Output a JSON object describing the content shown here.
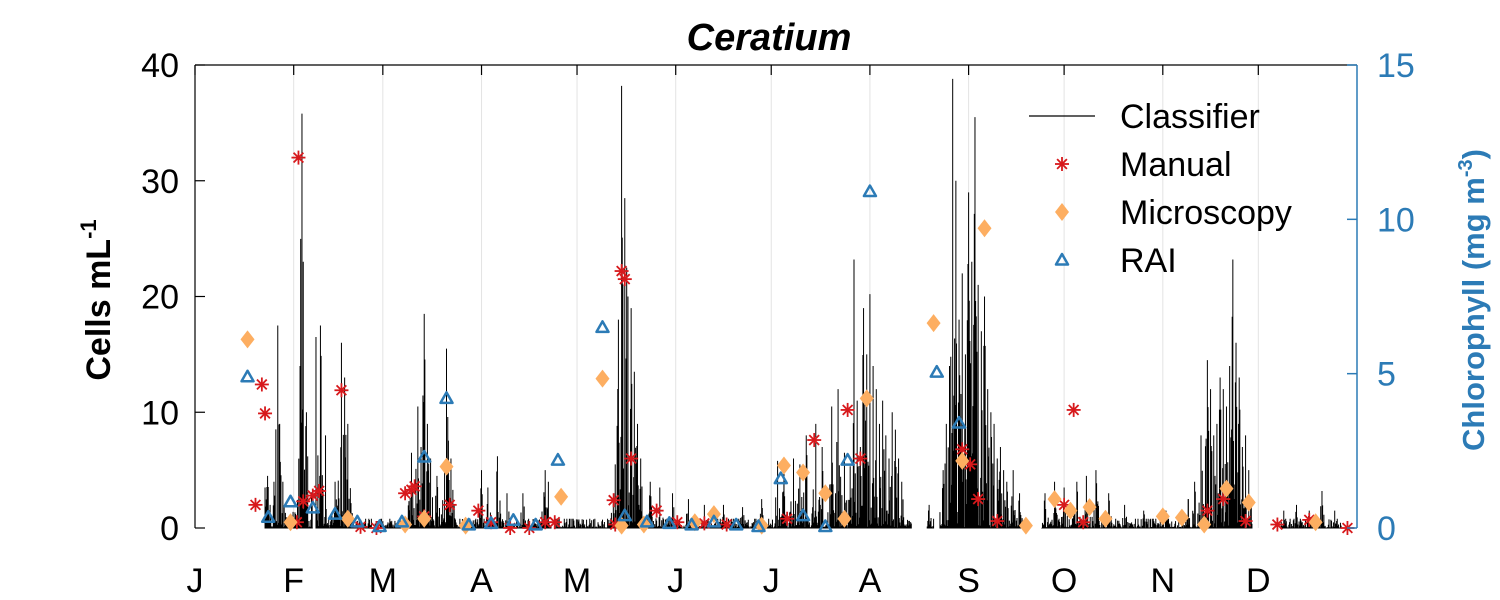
{
  "chart_data": {
    "type": "line",
    "title": "Ceratium",
    "ylabel_left": "Cells mL",
    "ylabel_left_sup": "-1",
    "ylabel_right_prefix": "Chlorophyll (mg m",
    "ylabel_right_sup": "-3",
    "ylabel_right_suffix": ")",
    "xlim": [
      0,
      365
    ],
    "ylim_left": [
      0,
      40
    ],
    "ylim_right": [
      0,
      15
    ],
    "yticks_left": [
      0,
      10,
      20,
      30,
      40
    ],
    "yticks_right": [
      0,
      5,
      10,
      15
    ],
    "xticks": [
      {
        "day": 0,
        "label": "J"
      },
      {
        "day": 31,
        "label": "F"
      },
      {
        "day": 59,
        "label": "M"
      },
      {
        "day": 90,
        "label": "A"
      },
      {
        "day": 120,
        "label": "M"
      },
      {
        "day": 151,
        "label": "J"
      },
      {
        "day": 181,
        "label": "J"
      },
      {
        "day": 212,
        "label": "A"
      },
      {
        "day": 243,
        "label": "S"
      },
      {
        "day": 273,
        "label": "O"
      },
      {
        "day": 304,
        "label": "N"
      },
      {
        "day": 334,
        "label": "D"
      }
    ],
    "grid": "vertical",
    "legend_position": "top-right",
    "legend": [
      {
        "label": "Classifier",
        "marker": "line",
        "color": "#000000"
      },
      {
        "label": "Manual",
        "marker": "asterisk",
        "color": "#d7191c"
      },
      {
        "label": "Microscopy",
        "marker": "diamond",
        "color": "#fdae61"
      },
      {
        "label": "RAI",
        "marker": "triangle",
        "color": "#2c7bb6"
      }
    ],
    "classifier_segments": [
      [
        22,
        37
      ],
      [
        38,
        112
      ],
      [
        113,
        185
      ],
      [
        185,
        225
      ],
      [
        230,
        232
      ],
      [
        234,
        260
      ],
      [
        266,
        312
      ],
      [
        312,
        332
      ],
      [
        341,
        360
      ]
    ],
    "classifier_peaks": [
      {
        "day": 22.0,
        "value": 3.5
      },
      {
        "day": 22.8,
        "value": 4.5
      },
      {
        "day": 23.5,
        "value": 2.0
      },
      {
        "day": 25.0,
        "value": 2.8
      },
      {
        "day": 26.0,
        "value": 17.5
      },
      {
        "day": 26.5,
        "value": 9.0
      },
      {
        "day": 27.5,
        "value": 4.0
      },
      {
        "day": 33.0,
        "value": 14.0
      },
      {
        "day": 33.5,
        "value": 35.8
      },
      {
        "day": 34.0,
        "value": 23.0
      },
      {
        "day": 35.0,
        "value": 10.0
      },
      {
        "day": 38.0,
        "value": 16.5
      },
      {
        "day": 39.5,
        "value": 17.5
      },
      {
        "day": 41.0,
        "value": 8.0
      },
      {
        "day": 44.0,
        "value": 4.0
      },
      {
        "day": 46.0,
        "value": 16.0
      },
      {
        "day": 47.0,
        "value": 13.0
      },
      {
        "day": 48.0,
        "value": 9.0
      },
      {
        "day": 68.0,
        "value": 6.5
      },
      {
        "day": 70.0,
        "value": 10.5
      },
      {
        "day": 71.0,
        "value": 7.0
      },
      {
        "day": 72.0,
        "value": 18.5
      },
      {
        "day": 73.0,
        "value": 9.0
      },
      {
        "day": 74.0,
        "value": 6.0
      },
      {
        "day": 76.0,
        "value": 4.5
      },
      {
        "day": 79.0,
        "value": 15.5
      },
      {
        "day": 80.5,
        "value": 6.0
      },
      {
        "day": 90.0,
        "value": 5.0
      },
      {
        "day": 92.0,
        "value": 3.5
      },
      {
        "day": 95.0,
        "value": 6.2
      },
      {
        "day": 98.0,
        "value": 3.0
      },
      {
        "day": 103.0,
        "value": 3.0
      },
      {
        "day": 110.0,
        "value": 5.0
      },
      {
        "day": 111.0,
        "value": 4.0
      },
      {
        "day": 132.0,
        "value": 5.5
      },
      {
        "day": 133.0,
        "value": 18.0
      },
      {
        "day": 134.0,
        "value": 38.2
      },
      {
        "day": 135.0,
        "value": 28.5
      },
      {
        "day": 135.5,
        "value": 22.5
      },
      {
        "day": 136.0,
        "value": 20.0
      },
      {
        "day": 137.0,
        "value": 19.0
      },
      {
        "day": 138.0,
        "value": 13.5
      },
      {
        "day": 139.0,
        "value": 9.0
      },
      {
        "day": 140.0,
        "value": 6.0
      },
      {
        "day": 143.0,
        "value": 4.0
      },
      {
        "day": 146.0,
        "value": 3.5
      },
      {
        "day": 150.0,
        "value": 3.0
      },
      {
        "day": 155.0,
        "value": 2.5
      },
      {
        "day": 160.0,
        "value": 2.0
      },
      {
        "day": 166.0,
        "value": 2.0
      },
      {
        "day": 172.0,
        "value": 1.8
      },
      {
        "day": 178.0,
        "value": 2.5
      },
      {
        "day": 183.0,
        "value": 5.8
      },
      {
        "day": 185.0,
        "value": 5.0
      },
      {
        "day": 188.0,
        "value": 6.0
      },
      {
        "day": 190.0,
        "value": 5.5
      },
      {
        "day": 192.0,
        "value": 8.0
      },
      {
        "day": 195.0,
        "value": 9.0
      },
      {
        "day": 197.0,
        "value": 7.0
      },
      {
        "day": 200.0,
        "value": 10.5
      },
      {
        "day": 202.0,
        "value": 12.0
      },
      {
        "day": 204.0,
        "value": 6.5
      },
      {
        "day": 207.0,
        "value": 23.2
      },
      {
        "day": 208.0,
        "value": 11.0
      },
      {
        "day": 209.0,
        "value": 7.0
      },
      {
        "day": 210.0,
        "value": 19.0
      },
      {
        "day": 211.0,
        "value": 15.0
      },
      {
        "day": 212.0,
        "value": 20.2
      },
      {
        "day": 213.0,
        "value": 14.0
      },
      {
        "day": 214.0,
        "value": 12.0
      },
      {
        "day": 215.0,
        "value": 9.0
      },
      {
        "day": 216.0,
        "value": 11.0
      },
      {
        "day": 217.0,
        "value": 8.0
      },
      {
        "day": 218.0,
        "value": 6.0
      },
      {
        "day": 219.0,
        "value": 10.0
      },
      {
        "day": 220.0,
        "value": 8.5
      },
      {
        "day": 221.0,
        "value": 6.0
      },
      {
        "day": 222.0,
        "value": 4.0
      },
      {
        "day": 230.5,
        "value": 2.0
      },
      {
        "day": 235.0,
        "value": 5.0
      },
      {
        "day": 236.0,
        "value": 9.0
      },
      {
        "day": 237.0,
        "value": 14.0
      },
      {
        "day": 238.0,
        "value": 38.8
      },
      {
        "day": 239.0,
        "value": 30.0
      },
      {
        "day": 240.0,
        "value": 18.0
      },
      {
        "day": 241.0,
        "value": 22.0
      },
      {
        "day": 242.0,
        "value": 15.0
      },
      {
        "day": 243.0,
        "value": 29.0
      },
      {
        "day": 244.0,
        "value": 23.0
      },
      {
        "day": 245.0,
        "value": 35.5
      },
      {
        "day": 246.0,
        "value": 21.0
      },
      {
        "day": 247.0,
        "value": 17.0
      },
      {
        "day": 248.0,
        "value": 20.0
      },
      {
        "day": 249.0,
        "value": 12.0
      },
      {
        "day": 250.0,
        "value": 10.0
      },
      {
        "day": 251.0,
        "value": 9.0
      },
      {
        "day": 252.0,
        "value": 6.0
      },
      {
        "day": 253.0,
        "value": 7.0
      },
      {
        "day": 254.0,
        "value": 5.0
      },
      {
        "day": 255.0,
        "value": 4.0
      },
      {
        "day": 257.0,
        "value": 5.0
      },
      {
        "day": 259.0,
        "value": 3.0
      },
      {
        "day": 267.0,
        "value": 3.0
      },
      {
        "day": 270.0,
        "value": 4.0
      },
      {
        "day": 273.0,
        "value": 3.5
      },
      {
        "day": 277.0,
        "value": 4.0
      },
      {
        "day": 280.0,
        "value": 4.5
      },
      {
        "day": 283.0,
        "value": 5.0
      },
      {
        "day": 287.0,
        "value": 3.0
      },
      {
        "day": 292.0,
        "value": 2.0
      },
      {
        "day": 298.0,
        "value": 1.5
      },
      {
        "day": 305.0,
        "value": 1.5
      },
      {
        "day": 312.0,
        "value": 2.5
      },
      {
        "day": 314.0,
        "value": 4.0
      },
      {
        "day": 316.0,
        "value": 8.0
      },
      {
        "day": 318.0,
        "value": 14.5
      },
      {
        "day": 319.0,
        "value": 12.0
      },
      {
        "day": 320.0,
        "value": 8.0
      },
      {
        "day": 321.0,
        "value": 9.0
      },
      {
        "day": 322.0,
        "value": 13.0
      },
      {
        "day": 323.0,
        "value": 12.0
      },
      {
        "day": 324.0,
        "value": 10.5
      },
      {
        "day": 325.0,
        "value": 14.0
      },
      {
        "day": 326.0,
        "value": 23.2
      },
      {
        "day": 327.0,
        "value": 16.0
      },
      {
        "day": 328.0,
        "value": 13.0
      },
      {
        "day": 329.0,
        "value": 7.0
      },
      {
        "day": 330.0,
        "value": 8.0
      },
      {
        "day": 331.0,
        "value": 5.0
      },
      {
        "day": 342.0,
        "value": 1.5
      },
      {
        "day": 346.0,
        "value": 2.0
      },
      {
        "day": 350.0,
        "value": 1.5
      },
      {
        "day": 354.0,
        "value": 3.2
      },
      {
        "day": 358.0,
        "value": 1.5
      }
    ],
    "manual": [
      {
        "day": 19.0,
        "value": 2.0
      },
      {
        "day": 21.0,
        "value": 12.4
      },
      {
        "day": 22.0,
        "value": 9.9
      },
      {
        "day": 32.0,
        "value": 0.5
      },
      {
        "day": 32.5,
        "value": 32.0
      },
      {
        "day": 34.0,
        "value": 2.3
      },
      {
        "day": 37.0,
        "value": 2.8
      },
      {
        "day": 39.0,
        "value": 3.2
      },
      {
        "day": 46.0,
        "value": 11.9
      },
      {
        "day": 52.0,
        "value": 0.1
      },
      {
        "day": 57.0,
        "value": 0.0
      },
      {
        "day": 66.0,
        "value": 3.0
      },
      {
        "day": 68.0,
        "value": 3.3
      },
      {
        "day": 69.0,
        "value": 3.6
      },
      {
        "day": 72.0,
        "value": 1.0
      },
      {
        "day": 80.0,
        "value": 2.0
      },
      {
        "day": 89.0,
        "value": 1.5
      },
      {
        "day": 93.0,
        "value": 0.5
      },
      {
        "day": 99.0,
        "value": 0.0
      },
      {
        "day": 105.0,
        "value": 0.0
      },
      {
        "day": 110.0,
        "value": 0.5
      },
      {
        "day": 113.0,
        "value": 0.5
      },
      {
        "day": 131.5,
        "value": 2.4
      },
      {
        "day": 132.0,
        "value": 0.3
      },
      {
        "day": 134.0,
        "value": 22.2
      },
      {
        "day": 135.0,
        "value": 21.5
      },
      {
        "day": 137.0,
        "value": 6.0
      },
      {
        "day": 151.5,
        "value": 0.5
      },
      {
        "day": 145.0,
        "value": 1.5
      },
      {
        "day": 160.0,
        "value": 0.4
      },
      {
        "day": 167.0,
        "value": 0.3
      },
      {
        "day": 186.0,
        "value": 0.8
      },
      {
        "day": 194.5,
        "value": 7.6
      },
      {
        "day": 205.0,
        "value": 10.2
      },
      {
        "day": 209.0,
        "value": 6.0
      },
      {
        "day": 241.0,
        "value": 6.8
      },
      {
        "day": 243.5,
        "value": 5.5
      },
      {
        "day": 246.0,
        "value": 2.5
      },
      {
        "day": 252.0,
        "value": 0.6
      },
      {
        "day": 273.0,
        "value": 2.0
      },
      {
        "day": 276.0,
        "value": 10.2
      },
      {
        "day": 279.0,
        "value": 0.5
      },
      {
        "day": 318.0,
        "value": 1.5
      },
      {
        "day": 323.0,
        "value": 2.5
      },
      {
        "day": 330.0,
        "value": 0.6
      },
      {
        "day": 340.0,
        "value": 0.3
      },
      {
        "day": 350.0,
        "value": 0.7
      },
      {
        "day": 362.0,
        "value": 0.0
      }
    ],
    "microscopy": [
      {
        "day": 16.5,
        "value": 16.3
      },
      {
        "day": 30.0,
        "value": 0.5
      },
      {
        "day": 48.0,
        "value": 0.8
      },
      {
        "day": 66.0,
        "value": 0.3
      },
      {
        "day": 72.0,
        "value": 0.8
      },
      {
        "day": 79.0,
        "value": 5.3
      },
      {
        "day": 85.0,
        "value": 0.2
      },
      {
        "day": 115.0,
        "value": 2.7
      },
      {
        "day": 128.0,
        "value": 12.9
      },
      {
        "day": 134.0,
        "value": 0.2
      },
      {
        "day": 141.0,
        "value": 0.3
      },
      {
        "day": 157.0,
        "value": 0.5
      },
      {
        "day": 163.0,
        "value": 1.2
      },
      {
        "day": 178.0,
        "value": 0.2
      },
      {
        "day": 185.0,
        "value": 5.4
      },
      {
        "day": 191.0,
        "value": 4.8
      },
      {
        "day": 198.0,
        "value": 3.0
      },
      {
        "day": 204.0,
        "value": 0.8
      },
      {
        "day": 211.0,
        "value": 11.2
      },
      {
        "day": 232.0,
        "value": 17.7
      },
      {
        "day": 241.0,
        "value": 5.8
      },
      {
        "day": 248.0,
        "value": 25.9
      },
      {
        "day": 261.0,
        "value": 0.2
      },
      {
        "day": 270.0,
        "value": 2.5
      },
      {
        "day": 275.0,
        "value": 1.5
      },
      {
        "day": 281.0,
        "value": 1.8
      },
      {
        "day": 286.0,
        "value": 0.8
      },
      {
        "day": 304.0,
        "value": 1.0
      },
      {
        "day": 310.0,
        "value": 0.9
      },
      {
        "day": 317.0,
        "value": 0.3
      },
      {
        "day": 324.0,
        "value": 3.4
      },
      {
        "day": 331.0,
        "value": 2.2
      },
      {
        "day": 352.0,
        "value": 0.5
      }
    ],
    "rai": [
      {
        "day": 16.5,
        "value": 4.9
      },
      {
        "day": 23.0,
        "value": 0.35
      },
      {
        "day": 30.0,
        "value": 0.85
      },
      {
        "day": 37.0,
        "value": 0.65
      },
      {
        "day": 44.0,
        "value": 0.45
      },
      {
        "day": 51.0,
        "value": 0.2
      },
      {
        "day": 58.0,
        "value": 0.05
      },
      {
        "day": 65.0,
        "value": 0.2
      },
      {
        "day": 72.0,
        "value": 2.3
      },
      {
        "day": 79.0,
        "value": 4.2
      },
      {
        "day": 86.0,
        "value": 0.1
      },
      {
        "day": 93.0,
        "value": 0.15
      },
      {
        "day": 100.0,
        "value": 0.25
      },
      {
        "day": 107.0,
        "value": 0.1
      },
      {
        "day": 114.0,
        "value": 2.2
      },
      {
        "day": 128.0,
        "value": 6.5
      },
      {
        "day": 135.0,
        "value": 0.4
      },
      {
        "day": 142.0,
        "value": 0.2
      },
      {
        "day": 149.0,
        "value": 0.15
      },
      {
        "day": 156.0,
        "value": 0.1
      },
      {
        "day": 163.0,
        "value": 0.2
      },
      {
        "day": 170.0,
        "value": 0.1
      },
      {
        "day": 177.0,
        "value": 0.05
      },
      {
        "day": 184.0,
        "value": 1.6
      },
      {
        "day": 191.0,
        "value": 0.4
      },
      {
        "day": 198.0,
        "value": 0.05
      },
      {
        "day": 205.0,
        "value": 2.2
      },
      {
        "day": 212.0,
        "value": 10.9
      },
      {
        "day": 233.0,
        "value": 5.05
      },
      {
        "day": 240.0,
        "value": 3.4
      }
    ]
  }
}
